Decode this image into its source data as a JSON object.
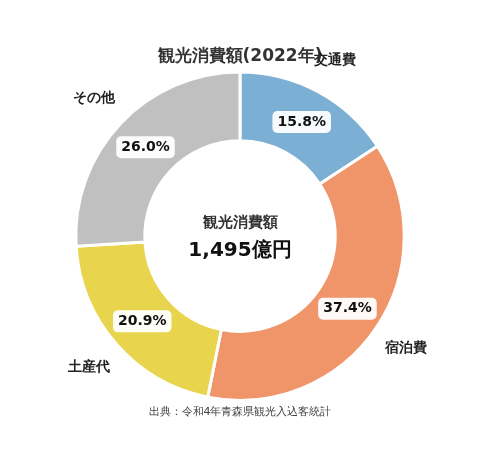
{
  "chart_data": {
    "type": "doughnut",
    "title": "観光消費額(2022年)",
    "categories": [
      "交通費",
      "宿泊費",
      "土産代",
      "その他"
    ],
    "values": [
      15.8,
      37.4,
      20.9,
      26.0
    ],
    "value_labels": [
      "15.8%",
      "37.4%",
      "20.9%",
      "26.0%"
    ],
    "colors": [
      "#7bafd4",
      "#f0956a",
      "#e8d44d",
      "#c0c0c0"
    ],
    "data_labels": true,
    "center_text": [
      "観光消費額",
      "1,495億円"
    ],
    "source": "出典：令和4年青森県観光入込客統計"
  }
}
